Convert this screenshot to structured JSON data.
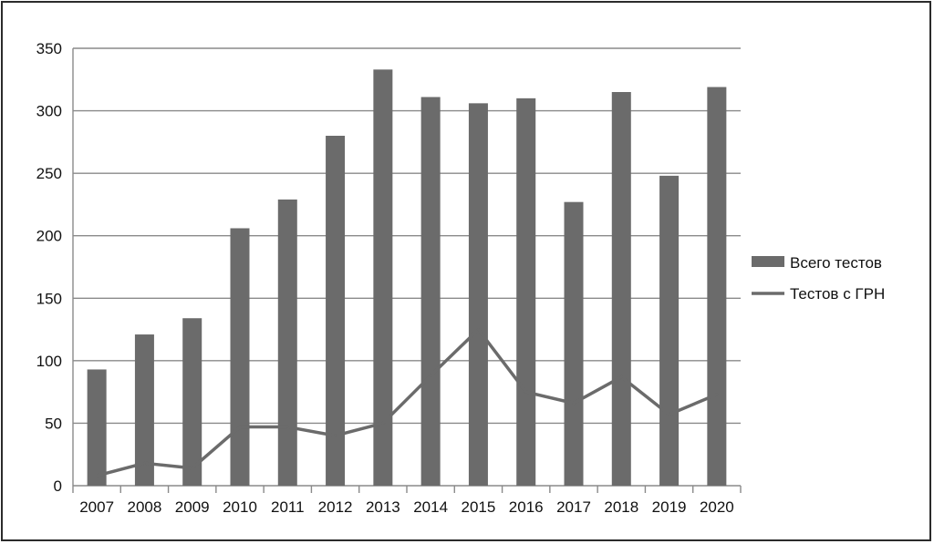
{
  "chart_data": {
    "type": "bar",
    "categories": [
      "2007",
      "2008",
      "2009",
      "2010",
      "2011",
      "2012",
      "2013",
      "2014",
      "2015",
      "2016",
      "2017",
      "2018",
      "2019",
      "2020"
    ],
    "series": [
      {
        "name": "Всего тестов",
        "kind": "bar",
        "values": [
          93,
          121,
          134,
          206,
          229,
          280,
          333,
          311,
          306,
          310,
          227,
          315,
          248,
          319
        ]
      },
      {
        "name": "Тестов с ГРН",
        "kind": "line",
        "values": [
          8,
          18,
          14,
          47,
          47,
          40,
          50,
          88,
          125,
          75,
          66,
          87,
          57,
          73
        ]
      }
    ],
    "ylim": [
      0,
      350
    ],
    "yticks": [
      0,
      50,
      100,
      150,
      200,
      250,
      300,
      350
    ],
    "grid": true,
    "legend": "right",
    "colors": {
      "bar": "#6b6b6b",
      "line": "#6b6b6b",
      "grid": "#8a8a8a",
      "text": "#111111"
    }
  }
}
